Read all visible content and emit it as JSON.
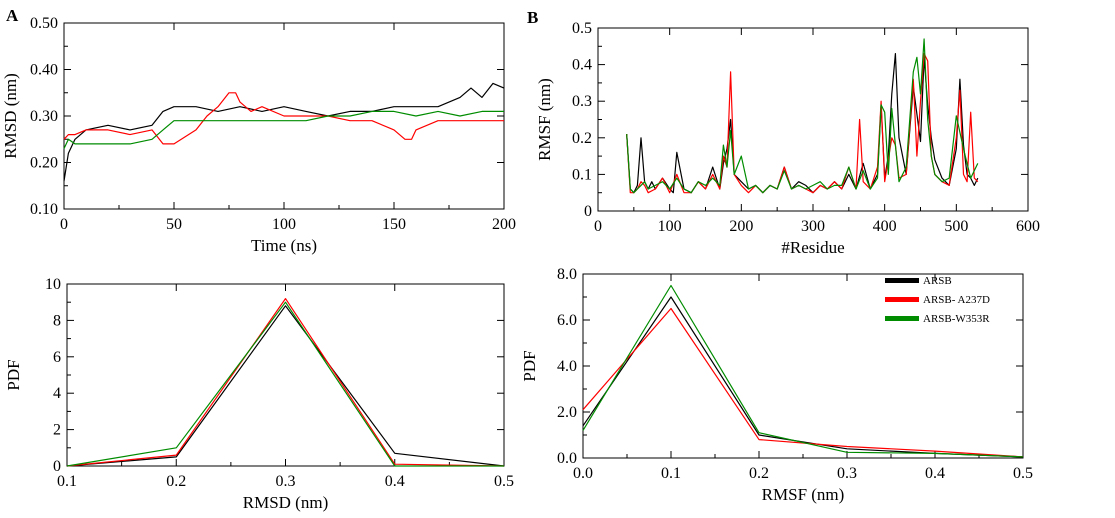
{
  "panel_labels": [
    "A",
    "B"
  ],
  "colors": {
    "ARSB": "#000000",
    "ARSB- A237D": "#ff0000",
    "ARSB-W353R": "#008c00",
    "axis": "#000000"
  },
  "chart_data": [
    {
      "id": "rmsd_time",
      "type": "line",
      "xlabel": "Time (ns)",
      "ylabel": "RMSD (nm)",
      "xlim": [
        0,
        200
      ],
      "ylim": [
        0.1,
        0.5
      ],
      "xticks": [
        0,
        50,
        100,
        150,
        200
      ],
      "yticks": [
        0.1,
        0.2,
        0.3,
        0.4,
        0.5
      ],
      "grid": false,
      "series": [
        {
          "name": "ARSB",
          "color": "#000000",
          "x": [
            0,
            2,
            5,
            10,
            20,
            30,
            40,
            45,
            50,
            60,
            70,
            80,
            90,
            100,
            110,
            120,
            130,
            140,
            150,
            160,
            170,
            180,
            185,
            190,
            195,
            200
          ],
          "y": [
            0.16,
            0.22,
            0.25,
            0.27,
            0.28,
            0.27,
            0.28,
            0.31,
            0.32,
            0.32,
            0.31,
            0.32,
            0.31,
            0.32,
            0.31,
            0.3,
            0.31,
            0.31,
            0.32,
            0.32,
            0.32,
            0.34,
            0.36,
            0.34,
            0.37,
            0.36
          ]
        },
        {
          "name": "ARSB- A237D",
          "color": "#ff0000",
          "x": [
            0,
            2,
            5,
            10,
            20,
            30,
            40,
            45,
            50,
            60,
            65,
            70,
            75,
            78,
            80,
            85,
            90,
            100,
            110,
            120,
            130,
            140,
            150,
            155,
            158,
            160,
            170,
            180,
            190,
            200
          ],
          "y": [
            0.25,
            0.26,
            0.26,
            0.27,
            0.27,
            0.26,
            0.27,
            0.24,
            0.24,
            0.27,
            0.3,
            0.32,
            0.35,
            0.35,
            0.33,
            0.31,
            0.32,
            0.3,
            0.3,
            0.3,
            0.29,
            0.29,
            0.27,
            0.25,
            0.25,
            0.27,
            0.29,
            0.29,
            0.29,
            0.29
          ]
        },
        {
          "name": "ARSB-W353R",
          "color": "#008c00",
          "x": [
            0,
            2,
            5,
            10,
            20,
            30,
            40,
            45,
            50,
            60,
            70,
            80,
            90,
            100,
            110,
            120,
            130,
            140,
            150,
            160,
            170,
            180,
            190,
            200
          ],
          "y": [
            0.23,
            0.25,
            0.24,
            0.24,
            0.24,
            0.24,
            0.25,
            0.27,
            0.29,
            0.29,
            0.29,
            0.29,
            0.29,
            0.29,
            0.29,
            0.3,
            0.3,
            0.31,
            0.31,
            0.3,
            0.31,
            0.3,
            0.31,
            0.31
          ]
        }
      ]
    },
    {
      "id": "rmsf_residue",
      "type": "line",
      "xlabel": "#Residue",
      "ylabel": "RMSF (nm)",
      "xlim": [
        0,
        600
      ],
      "ylim": [
        0,
        0.5
      ],
      "xticks": [
        0,
        100,
        200,
        300,
        400,
        500,
        600
      ],
      "yticks": [
        0,
        0.1,
        0.2,
        0.3,
        0.4,
        0.5
      ],
      "grid": false,
      "series": [
        {
          "name": "ARSB",
          "color": "#000000",
          "x": [
            40,
            45,
            50,
            55,
            60,
            65,
            70,
            75,
            80,
            90,
            100,
            105,
            110,
            120,
            130,
            140,
            150,
            160,
            170,
            175,
            180,
            185,
            190,
            200,
            210,
            220,
            230,
            240,
            250,
            260,
            270,
            280,
            290,
            300,
            310,
            320,
            330,
            340,
            350,
            360,
            370,
            380,
            390,
            395,
            400,
            405,
            410,
            415,
            420,
            430,
            440,
            450,
            455,
            460,
            465,
            470,
            480,
            490,
            500,
            505,
            510,
            515,
            520,
            525,
            530
          ],
          "y": [
            0.21,
            0.06,
            0.05,
            0.07,
            0.2,
            0.08,
            0.06,
            0.08,
            0.06,
            0.09,
            0.06,
            0.05,
            0.16,
            0.06,
            0.05,
            0.08,
            0.06,
            0.12,
            0.06,
            0.13,
            0.17,
            0.25,
            0.1,
            0.08,
            0.06,
            0.07,
            0.05,
            0.07,
            0.06,
            0.12,
            0.06,
            0.08,
            0.07,
            0.05,
            0.07,
            0.06,
            0.08,
            0.06,
            0.1,
            0.06,
            0.13,
            0.06,
            0.1,
            0.29,
            0.09,
            0.15,
            0.32,
            0.43,
            0.2,
            0.1,
            0.34,
            0.19,
            0.42,
            0.29,
            0.2,
            0.14,
            0.09,
            0.07,
            0.17,
            0.36,
            0.18,
            0.1,
            0.09,
            0.07,
            0.09
          ]
        },
        {
          "name": "ARSB- A237D",
          "color": "#ff0000",
          "x": [
            40,
            45,
            50,
            55,
            60,
            65,
            70,
            80,
            90,
            100,
            110,
            120,
            130,
            140,
            150,
            160,
            170,
            175,
            180,
            185,
            190,
            200,
            210,
            220,
            230,
            240,
            250,
            260,
            270,
            280,
            290,
            300,
            310,
            320,
            330,
            340,
            350,
            360,
            365,
            370,
            380,
            390,
            395,
            400,
            410,
            415,
            420,
            430,
            440,
            445,
            450,
            455,
            460,
            465,
            470,
            480,
            490,
            500,
            505,
            510,
            515,
            520,
            525,
            530
          ],
          "y": [
            0.21,
            0.05,
            0.05,
            0.06,
            0.08,
            0.07,
            0.05,
            0.06,
            0.09,
            0.05,
            0.1,
            0.05,
            0.05,
            0.08,
            0.06,
            0.1,
            0.06,
            0.15,
            0.12,
            0.38,
            0.1,
            0.07,
            0.05,
            0.07,
            0.05,
            0.07,
            0.06,
            0.12,
            0.06,
            0.07,
            0.06,
            0.05,
            0.07,
            0.06,
            0.08,
            0.06,
            0.12,
            0.06,
            0.25,
            0.08,
            0.06,
            0.12,
            0.3,
            0.08,
            0.2,
            0.18,
            0.09,
            0.1,
            0.36,
            0.15,
            0.3,
            0.43,
            0.41,
            0.15,
            0.1,
            0.08,
            0.07,
            0.2,
            0.33,
            0.1,
            0.08,
            0.27,
            0.09,
            0.08
          ]
        },
        {
          "name": "ARSB-W353R",
          "color": "#008c00",
          "x": [
            40,
            45,
            50,
            55,
            60,
            65,
            70,
            80,
            90,
            100,
            110,
            120,
            130,
            140,
            150,
            160,
            170,
            175,
            180,
            185,
            190,
            200,
            210,
            220,
            230,
            240,
            250,
            260,
            270,
            280,
            290,
            300,
            310,
            320,
            330,
            340,
            350,
            360,
            370,
            380,
            390,
            395,
            400,
            405,
            410,
            420,
            430,
            440,
            445,
            450,
            455,
            460,
            465,
            470,
            480,
            490,
            500,
            510,
            520,
            530
          ],
          "y": [
            0.21,
            0.06,
            0.05,
            0.06,
            0.07,
            0.08,
            0.06,
            0.07,
            0.08,
            0.06,
            0.09,
            0.06,
            0.05,
            0.08,
            0.07,
            0.09,
            0.07,
            0.18,
            0.12,
            0.22,
            0.1,
            0.15,
            0.06,
            0.07,
            0.05,
            0.07,
            0.06,
            0.11,
            0.06,
            0.07,
            0.06,
            0.07,
            0.08,
            0.06,
            0.07,
            0.07,
            0.12,
            0.06,
            0.11,
            0.06,
            0.09,
            0.29,
            0.27,
            0.1,
            0.28,
            0.08,
            0.12,
            0.38,
            0.42,
            0.32,
            0.47,
            0.25,
            0.15,
            0.1,
            0.08,
            0.09,
            0.26,
            0.17,
            0.09,
            0.13
          ]
        }
      ]
    },
    {
      "id": "rmsd_pdf",
      "type": "line",
      "xlabel": "RMSD (nm)",
      "ylabel": "PDF",
      "xlim": [
        0.1,
        0.5
      ],
      "ylim": [
        0,
        10
      ],
      "xticks": [
        0.1,
        0.2,
        0.3,
        0.4,
        0.5
      ],
      "yticks": [
        0,
        2,
        4,
        6,
        8,
        10
      ],
      "grid": false,
      "series": [
        {
          "name": "ARSB",
          "color": "#000000",
          "x": [
            0.1,
            0.2,
            0.3,
            0.4,
            0.5
          ],
          "y": [
            0,
            0.5,
            8.8,
            0.7,
            0
          ]
        },
        {
          "name": "ARSB- A237D",
          "color": "#ff0000",
          "x": [
            0.1,
            0.2,
            0.3,
            0.4,
            0.5
          ],
          "y": [
            0,
            0.6,
            9.2,
            0.1,
            0
          ]
        },
        {
          "name": "ARSB-W353R",
          "color": "#008c00",
          "x": [
            0.1,
            0.2,
            0.3,
            0.4,
            0.5
          ],
          "y": [
            0,
            1.0,
            9.0,
            0.0,
            0
          ]
        }
      ]
    },
    {
      "id": "rmsf_pdf",
      "type": "line",
      "xlabel": "RMSF (nm)",
      "ylabel": "PDF",
      "xlim": [
        0,
        0.5
      ],
      "ylim": [
        0,
        8
      ],
      "xticks": [
        0,
        0.1,
        0.2,
        0.3,
        0.4,
        0.5
      ],
      "yticks": [
        0,
        2,
        4,
        6,
        8
      ],
      "grid": false,
      "legend": {
        "placement": "top-right",
        "entries": [
          "ARSB",
          "ARSB- A237D",
          "ARSB-W353R"
        ]
      },
      "series": [
        {
          "name": "ARSB",
          "color": "#000000",
          "x": [
            0,
            0.1,
            0.2,
            0.3,
            0.4,
            0.5
          ],
          "y": [
            1.4,
            7.0,
            1.0,
            0.4,
            0.2,
            0.05
          ]
        },
        {
          "name": "ARSB- A237D",
          "color": "#ff0000",
          "x": [
            0,
            0.1,
            0.2,
            0.3,
            0.4,
            0.5
          ],
          "y": [
            2.1,
            6.5,
            0.8,
            0.5,
            0.3,
            0.05
          ]
        },
        {
          "name": "ARSB-W353R",
          "color": "#008c00",
          "x": [
            0,
            0.1,
            0.2,
            0.3,
            0.4,
            0.5
          ],
          "y": [
            1.2,
            7.5,
            1.1,
            0.25,
            0.2,
            0.05
          ]
        }
      ]
    }
  ]
}
